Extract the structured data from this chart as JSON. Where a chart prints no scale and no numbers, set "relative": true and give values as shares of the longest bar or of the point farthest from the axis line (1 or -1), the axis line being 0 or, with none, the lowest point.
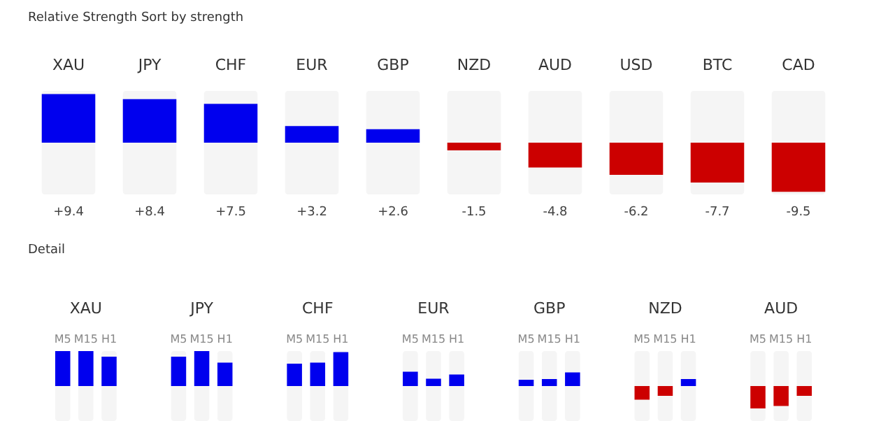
{
  "chart_data": [
    {
      "type": "bar",
      "title": "Relative Strength",
      "annotations": [
        "Sort by strength"
      ],
      "categories": [
        "XAU",
        "JPY",
        "CHF",
        "EUR",
        "GBP",
        "NZD",
        "AUD",
        "USD",
        "BTC",
        "CAD"
      ],
      "values": [
        9.4,
        8.4,
        7.5,
        3.2,
        2.6,
        -1.5,
        -4.8,
        -6.2,
        -7.7,
        -9.5
      ],
      "value_labels": [
        "+9.4",
        "+8.4",
        "+7.5",
        "+3.2",
        "+2.6",
        "-1.5",
        "-4.8",
        "-6.2",
        "-7.7",
        "-9.5"
      ],
      "colors": [
        "#0000ee",
        "#0000ee",
        "#0000ee",
        "#0000ee",
        "#0000ee",
        "#cc0000",
        "#cc0000",
        "#cc0000",
        "#cc0000",
        "#cc0000"
      ],
      "ylim": [
        -10,
        10
      ],
      "tick_labels": "x"
    },
    {
      "type": "bar",
      "title": "Detail",
      "relative": true,
      "categories": [
        "XAU",
        "JPY",
        "CHF",
        "EUR",
        "GBP",
        "NZD",
        "AUD"
      ],
      "series": [
        {
          "name": "M5",
          "values": [
            1.0,
            0.84,
            0.64,
            0.41,
            0.18,
            -0.39,
            -0.64
          ],
          "colors": [
            "#0000ee",
            "#0000ee",
            "#0000ee",
            "#0000ee",
            "#0000ee",
            "#cc0000",
            "#cc0000"
          ]
        },
        {
          "name": "M15",
          "values": [
            1.0,
            1.0,
            0.67,
            0.21,
            0.2,
            -0.28,
            -0.57
          ],
          "colors": [
            "#0000ee",
            "#0000ee",
            "#0000ee",
            "#0000ee",
            "#0000ee",
            "#cc0000",
            "#cc0000"
          ]
        },
        {
          "name": "H1",
          "values": [
            0.84,
            0.67,
            0.97,
            0.33,
            0.39,
            0.2,
            -0.28
          ],
          "colors": [
            "#0000ee",
            "#0000ee",
            "#0000ee",
            "#0000ee",
            "#0000ee",
            "#0000ee",
            "#cc0000"
          ]
        }
      ],
      "tick_labels": "x"
    }
  ]
}
